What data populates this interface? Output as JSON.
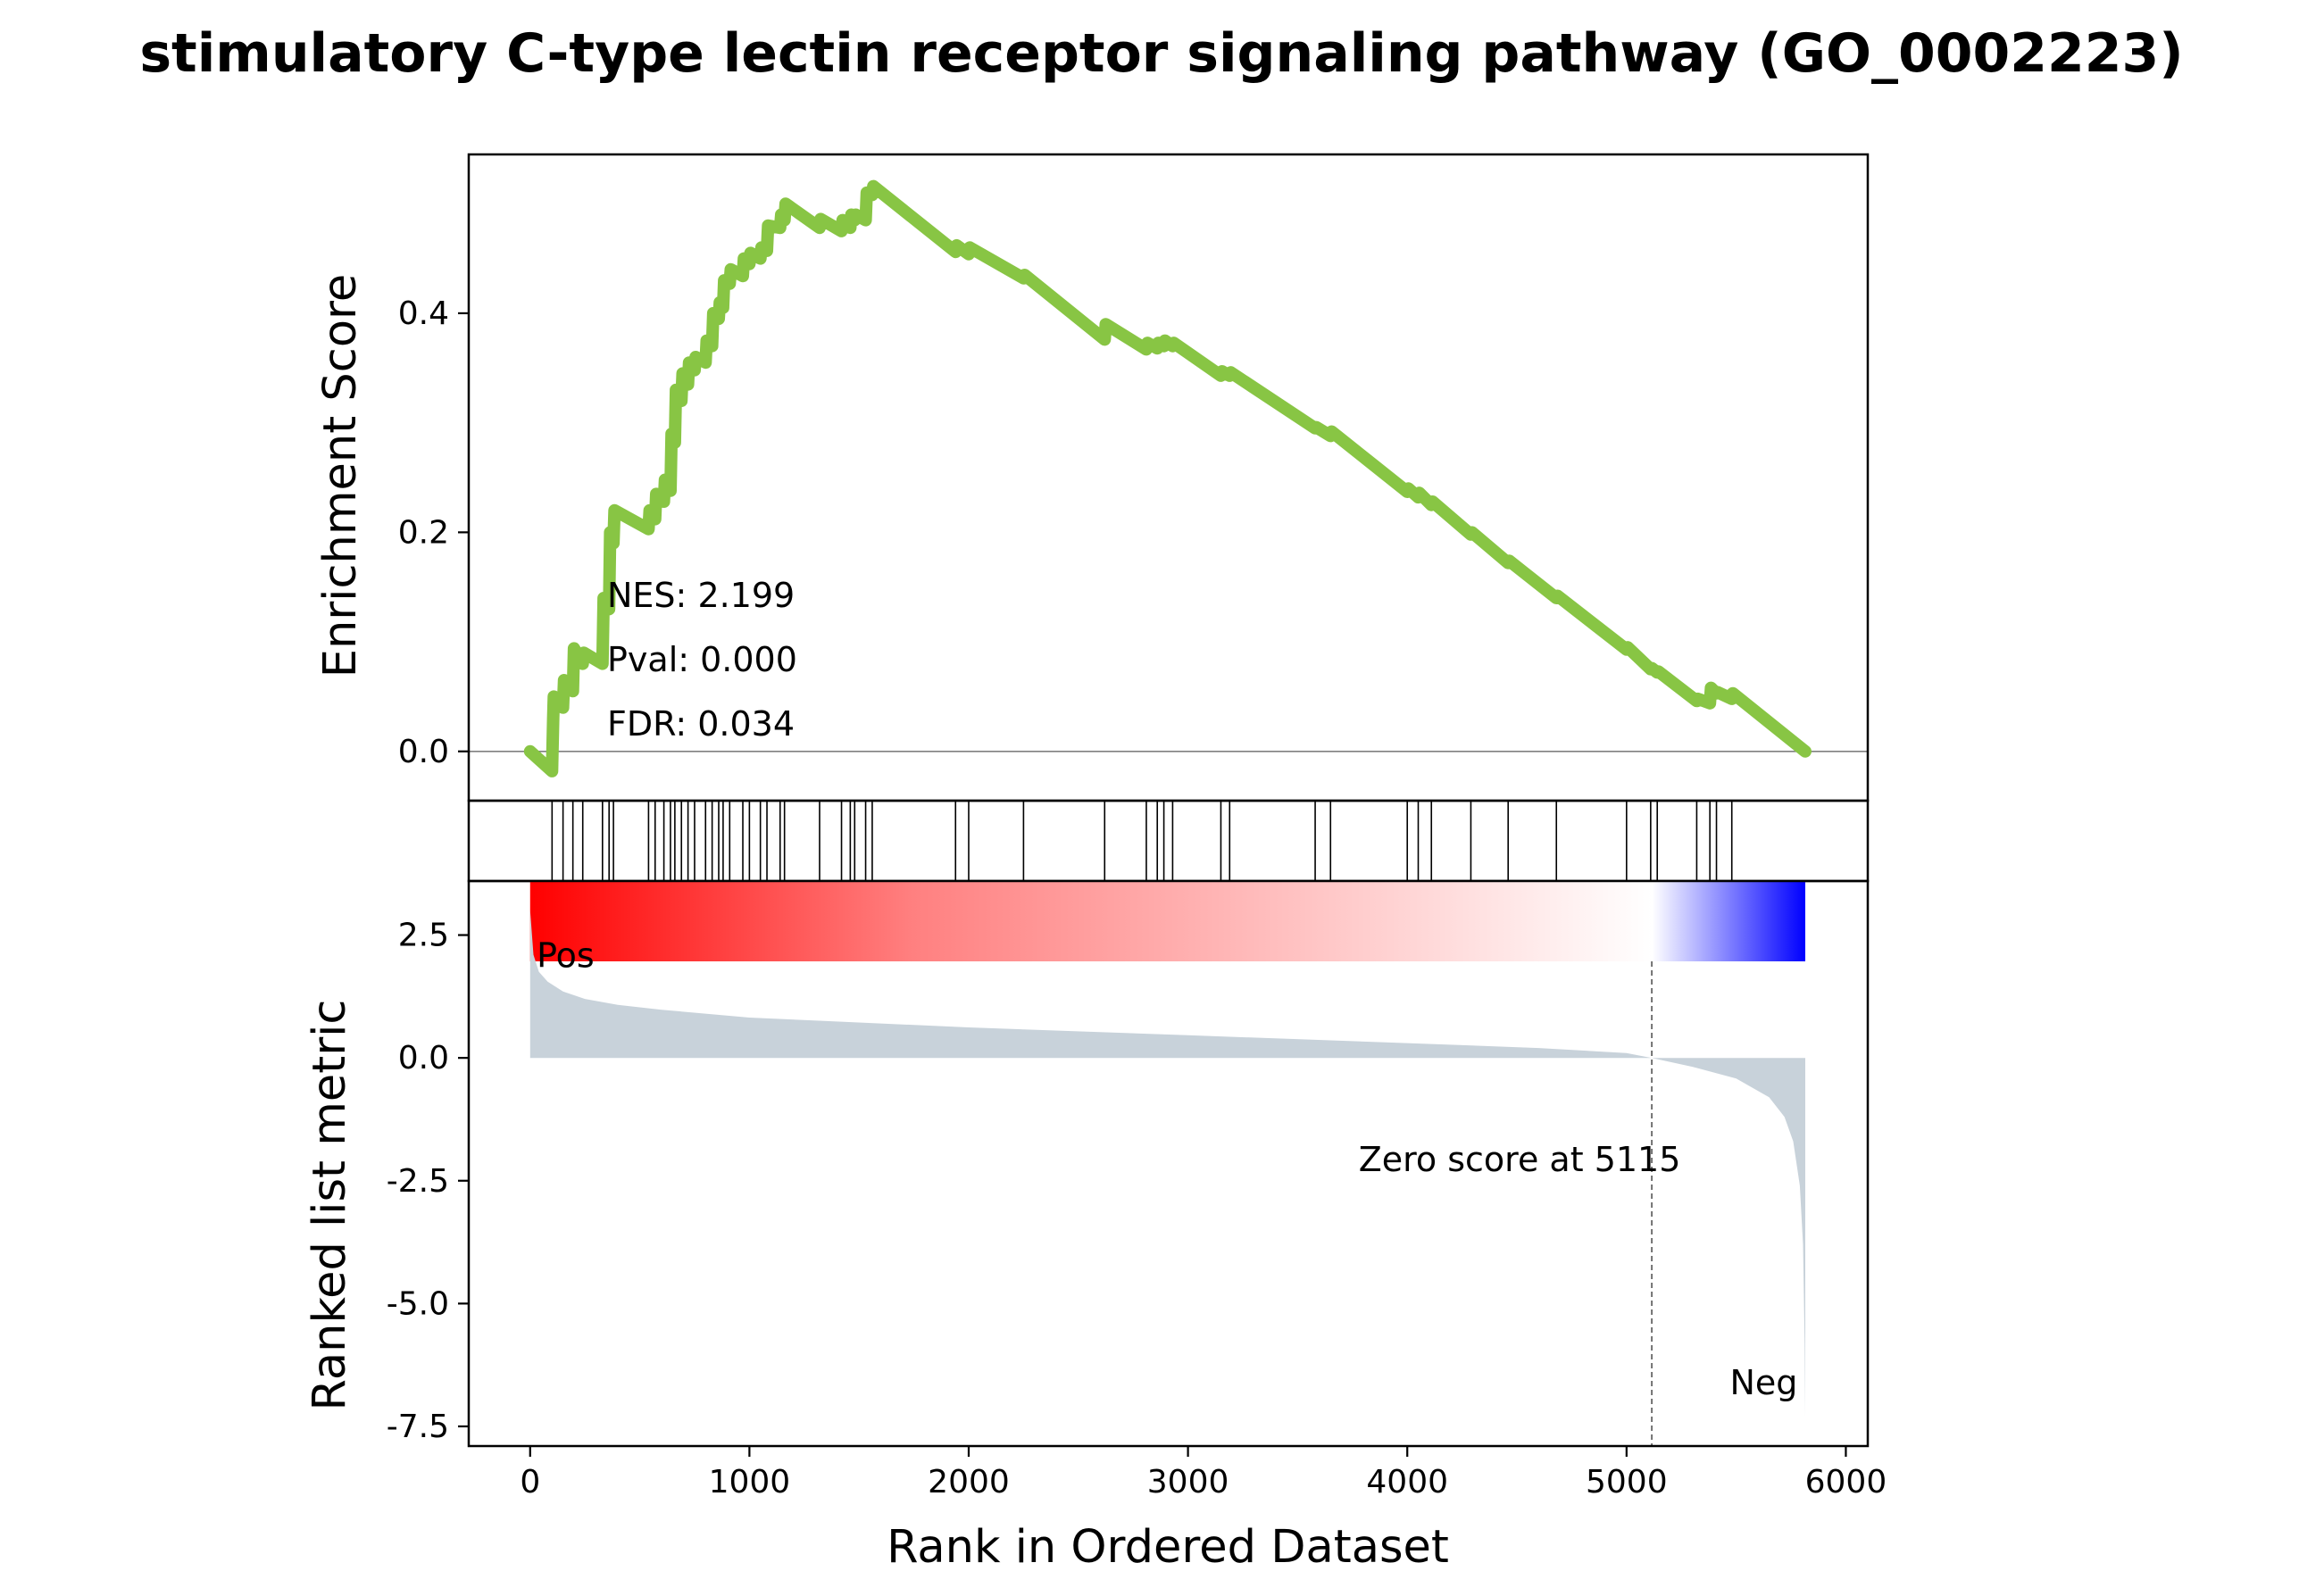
{
  "chart_data": {
    "type": "line",
    "title": "stimulatory C-type lectin receptor signaling pathway (GO_0002223)",
    "xlabel": "Rank in Ordered Dataset",
    "xlim": [
      -280,
      6100
    ],
    "x_ticks": [
      0,
      1000,
      2000,
      3000,
      4000,
      5000,
      6000
    ],
    "x_tick_labels": [
      "0",
      "1000",
      "2000",
      "3000",
      "4000",
      "5000",
      "6000"
    ],
    "n_genes": 5815,
    "enrichment_panel": {
      "ylabel": "Enrichment Score",
      "ylim": [
        -0.045,
        0.545
      ],
      "y_ticks": [
        0.0,
        0.2,
        0.4
      ],
      "y_tick_labels": [
        "0.0",
        "0.2",
        "0.4"
      ],
      "line_color": "#88c544",
      "baseline_color": "#808080",
      "series": [
        {
          "x": [
            0,
            100,
            105,
            108,
            150,
            155,
            195,
            200,
            240,
            245,
            330,
            335,
            360,
            365,
            380,
            385,
            540,
            545,
            570,
            575,
            610,
            615,
            640,
            645,
            660,
            665,
            690,
            695,
            720,
            725,
            750,
            755,
            800,
            805,
            830,
            835,
            860,
            865,
            880,
            885,
            910,
            915,
            970,
            975,
            1000,
            1005,
            1050,
            1055,
            1080,
            1085,
            1140,
            1145,
            1160,
            1165,
            1320,
            1325,
            1420,
            1425,
            1460,
            1465,
            1480,
            1485,
            1530,
            1535,
            1560,
            1565,
            1940,
            1945,
            2000,
            2005,
            2250,
            2255,
            2620,
            2625,
            2810,
            2815,
            2860,
            2865,
            2890,
            2895,
            2930,
            2935,
            3150,
            3155,
            3190,
            3195,
            3580,
            3585,
            3650,
            3655,
            4000,
            4005,
            4050,
            4055,
            4110,
            4115,
            4290,
            4295,
            4460,
            4465,
            4680,
            4685,
            5000,
            5005,
            5110,
            5115,
            5140,
            5145,
            5320,
            5325,
            5380,
            5385,
            5410,
            5415,
            5480,
            5485,
            5815
          ],
          "y": [
            0.0,
            -0.018,
            0.03,
            0.05,
            0.04,
            0.065,
            0.055,
            0.094,
            0.08,
            0.09,
            0.08,
            0.14,
            0.13,
            0.2,
            0.19,
            0.22,
            0.203,
            0.22,
            0.212,
            0.235,
            0.228,
            0.248,
            0.238,
            0.29,
            0.282,
            0.33,
            0.32,
            0.345,
            0.335,
            0.355,
            0.348,
            0.36,
            0.355,
            0.375,
            0.37,
            0.4,
            0.395,
            0.41,
            0.405,
            0.43,
            0.427,
            0.44,
            0.434,
            0.45,
            0.445,
            0.455,
            0.45,
            0.46,
            0.457,
            0.48,
            0.478,
            0.49,
            0.485,
            0.5,
            0.478,
            0.486,
            0.475,
            0.485,
            0.478,
            0.49,
            0.485,
            0.49,
            0.485,
            0.51,
            0.508,
            0.516,
            0.456,
            0.462,
            0.454,
            0.46,
            0.432,
            0.435,
            0.376,
            0.39,
            0.367,
            0.373,
            0.368,
            0.373,
            0.37,
            0.375,
            0.37,
            0.373,
            0.343,
            0.347,
            0.343,
            0.346,
            0.295,
            0.296,
            0.288,
            0.292,
            0.237,
            0.24,
            0.232,
            0.236,
            0.225,
            0.228,
            0.198,
            0.2,
            0.172,
            0.174,
            0.14,
            0.142,
            0.093,
            0.095,
            0.075,
            0.076,
            0.072,
            0.073,
            0.046,
            0.048,
            0.044,
            0.058,
            0.053,
            0.054,
            0.048,
            0.053,
            0.0
          ]
        }
      ],
      "stats": {
        "nes": "NES: 2.199",
        "pval": "Pval: 0.000",
        "fdr": "FDR: 0.034"
      }
    },
    "hits_panel": {
      "hit_ranks": [
        100,
        150,
        195,
        240,
        330,
        360,
        380,
        540,
        570,
        610,
        640,
        660,
        690,
        720,
        750,
        800,
        830,
        860,
        880,
        910,
        970,
        1000,
        1050,
        1080,
        1140,
        1160,
        1320,
        1420,
        1460,
        1480,
        1530,
        1560,
        1940,
        2000,
        2250,
        2620,
        2810,
        2860,
        2890,
        2930,
        3150,
        3190,
        3580,
        3650,
        4000,
        4050,
        4110,
        4290,
        4460,
        4680,
        5000,
        5110,
        5140,
        5320,
        5380,
        5410,
        5480
      ],
      "line_color": "#000000"
    },
    "colorbar": {
      "colors": [
        "#ff0000",
        "#ff8080",
        "#ffffff",
        "#0000ff"
      ],
      "stops": [
        0.0,
        0.3,
        0.88,
        1.0
      ]
    },
    "ranked_panel": {
      "ylabel": "Ranked list metric",
      "ylim": [
        -7.9,
        3.6
      ],
      "y_ticks": [
        2.5,
        0.0,
        -2.5,
        -5.0,
        -7.5
      ],
      "y_tick_labels": [
        "2.5",
        "0.0",
        "-2.5",
        "-5.0",
        "-7.5"
      ],
      "fill_color": "#c8d2da",
      "metric_curve": {
        "x": [
          0,
          15,
          40,
          80,
          150,
          250,
          400,
          600,
          1000,
          2000,
          3000,
          4000,
          4600,
          5000,
          5115,
          5300,
          5500,
          5650,
          5720,
          5760,
          5790,
          5805,
          5812,
          5815
        ],
        "y": [
          3.0,
          2.1,
          1.75,
          1.55,
          1.35,
          1.2,
          1.08,
          0.98,
          0.82,
          0.62,
          0.46,
          0.3,
          0.2,
          0.1,
          0.0,
          -0.18,
          -0.42,
          -0.8,
          -1.2,
          -1.7,
          -2.6,
          -3.8,
          -5.8,
          -7.3
        ]
      },
      "zero_score_rank": 5115,
      "zero_label": "Zero score at 5115",
      "pos_label": "Pos",
      "neg_label": "Neg",
      "pos_color": "#ff0000",
      "neg_color": "#0000ff"
    }
  }
}
